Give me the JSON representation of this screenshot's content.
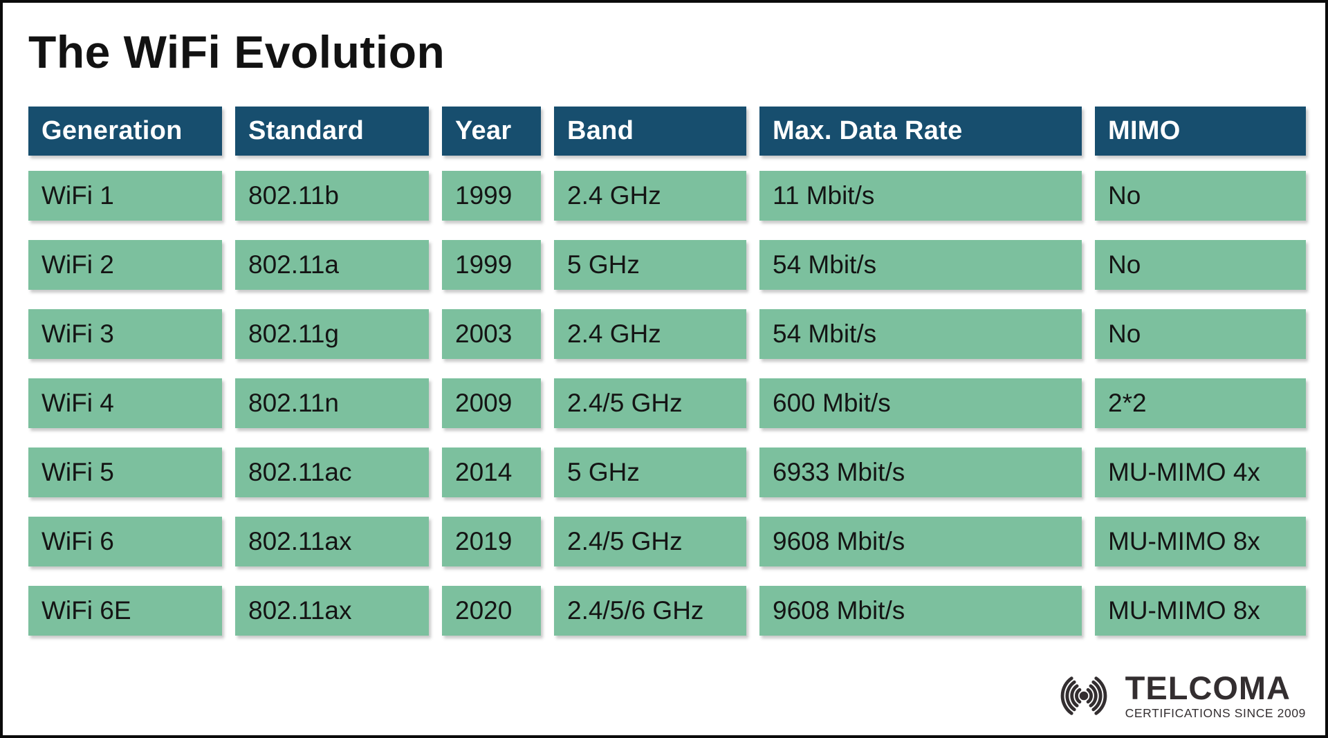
{
  "page": {
    "title": "The WiFi Evolution"
  },
  "colors": {
    "page_bg": "#FFFFFF",
    "header_bg": "#174E6E",
    "header_text": "#FFFFFF",
    "cell_bg": "#7CC09E",
    "cell_text": "#141414",
    "logo_color": "#332E30"
  },
  "chart_data": {
    "type": "table",
    "title": "The WiFi Evolution",
    "columns": [
      "Generation",
      "Standard",
      "Year",
      "Band",
      "Max. Data Rate",
      "MIMO"
    ],
    "rows": [
      [
        "WiFi 1",
        "802.11b",
        "1999",
        "2.4 GHz",
        "11 Mbit/s",
        "No"
      ],
      [
        "WiFi 2",
        "802.11a",
        "1999",
        "5 GHz",
        "54 Mbit/s",
        "No"
      ],
      [
        "WiFi 3",
        "802.11g",
        "2003",
        "2.4 GHz",
        "54 Mbit/s",
        "No"
      ],
      [
        "WiFi 4",
        "802.11n",
        "2009",
        "2.4/5 GHz",
        "600 Mbit/s",
        "2*2"
      ],
      [
        "WiFi 5",
        "802.11ac",
        "2014",
        "5 GHz",
        "6933 Mbit/s",
        "MU-MIMO 4x"
      ],
      [
        "WiFi 6",
        "802.11ax",
        "2019",
        "2.4/5 GHz",
        "9608 Mbit/s",
        "MU-MIMO 8x"
      ],
      [
        "WiFi 6E",
        "802.11ax",
        "2020",
        "2.4/5/6 GHz",
        "9608 Mbit/s",
        "MU-MIMO 8x"
      ]
    ]
  },
  "logo": {
    "icon": "wifi-signal-icon",
    "name": "TELCOMA",
    "tagline": "CERTIFICATIONS SINCE 2009"
  }
}
